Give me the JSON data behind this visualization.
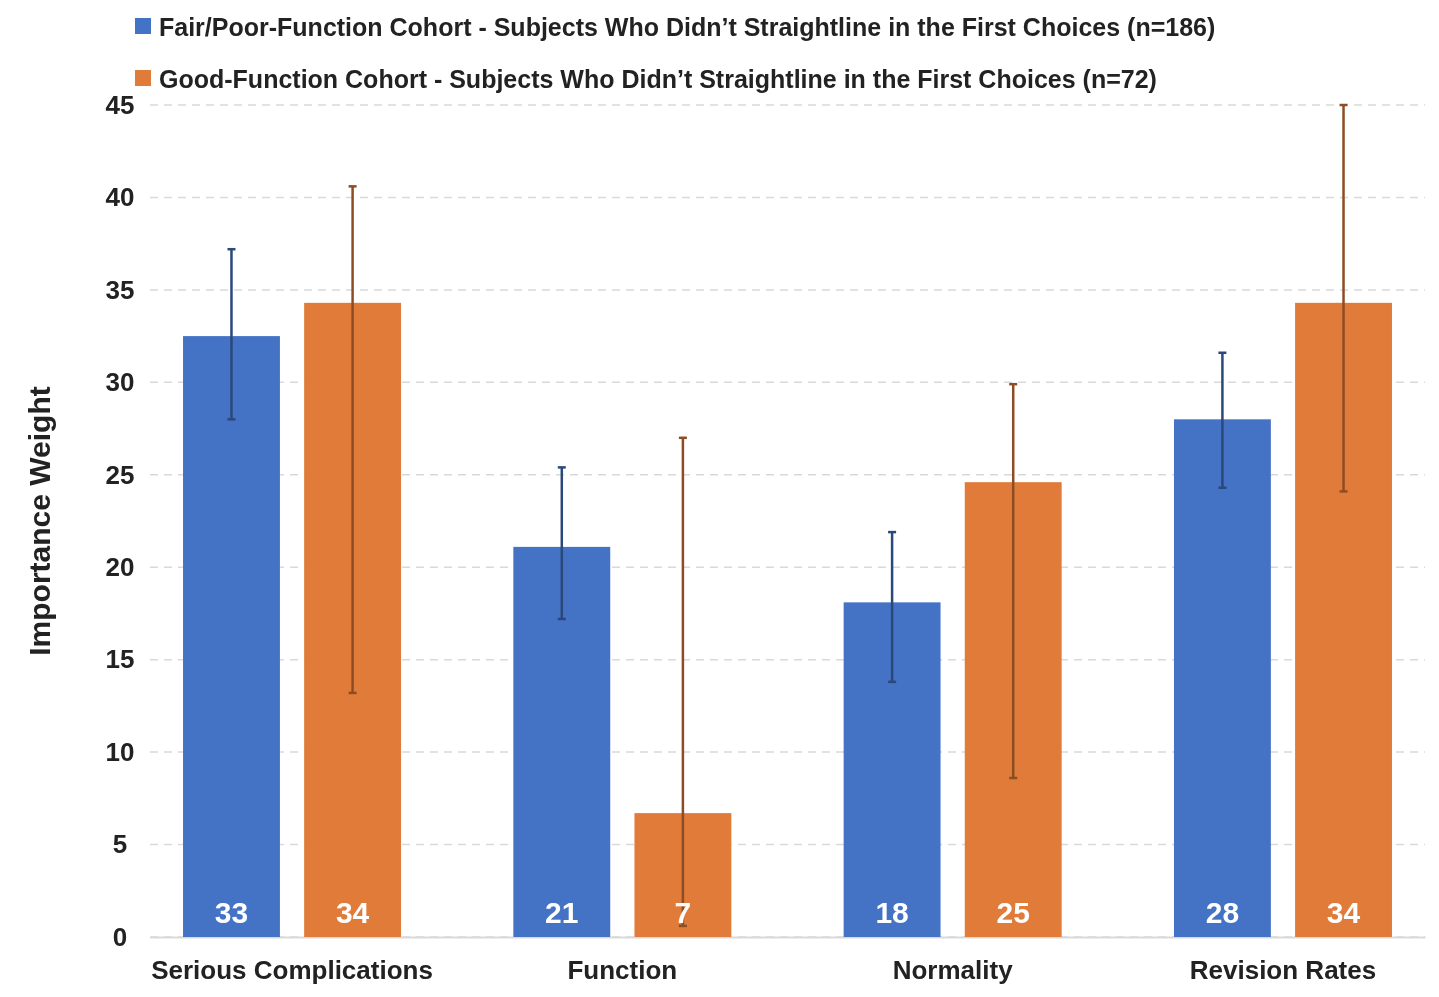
{
  "chart_data": {
    "type": "bar",
    "ylabel": "Importance Weight",
    "categories": [
      "Serious Complications",
      "Function",
      "Normality",
      "Revision Rates"
    ],
    "series": [
      {
        "name": "Fair/Poor-Function Cohort - Subjects Who Didn’t Straightline in the First Choices (n=186)",
        "color": "#4472c4",
        "values": [
          32.5,
          21.1,
          18.1,
          28.0
        ],
        "errors": [
          [
            28.0,
            37.2
          ],
          [
            17.2,
            25.4
          ],
          [
            13.8,
            21.9
          ],
          [
            24.3,
            31.6
          ]
        ],
        "value_labels": [
          "33",
          "21",
          "18",
          "28"
        ]
      },
      {
        "name": "Good-Function Cohort - Subjects Who Didn’t Straightline in the First Choices (n=72)",
        "color": "#e07b39",
        "values": [
          34.3,
          6.7,
          24.6,
          34.3
        ],
        "errors": [
          [
            13.2,
            40.6
          ],
          [
            0.6,
            27.0
          ],
          [
            8.6,
            29.9
          ],
          [
            24.1,
            45.0
          ]
        ],
        "value_labels": [
          "34",
          "7",
          "25",
          "34"
        ]
      }
    ],
    "ylim": [
      0,
      45
    ],
    "yticks": [
      0,
      5,
      10,
      15,
      20,
      25,
      30,
      35,
      40,
      45
    ],
    "grid": "y",
    "legend": "top left"
  }
}
